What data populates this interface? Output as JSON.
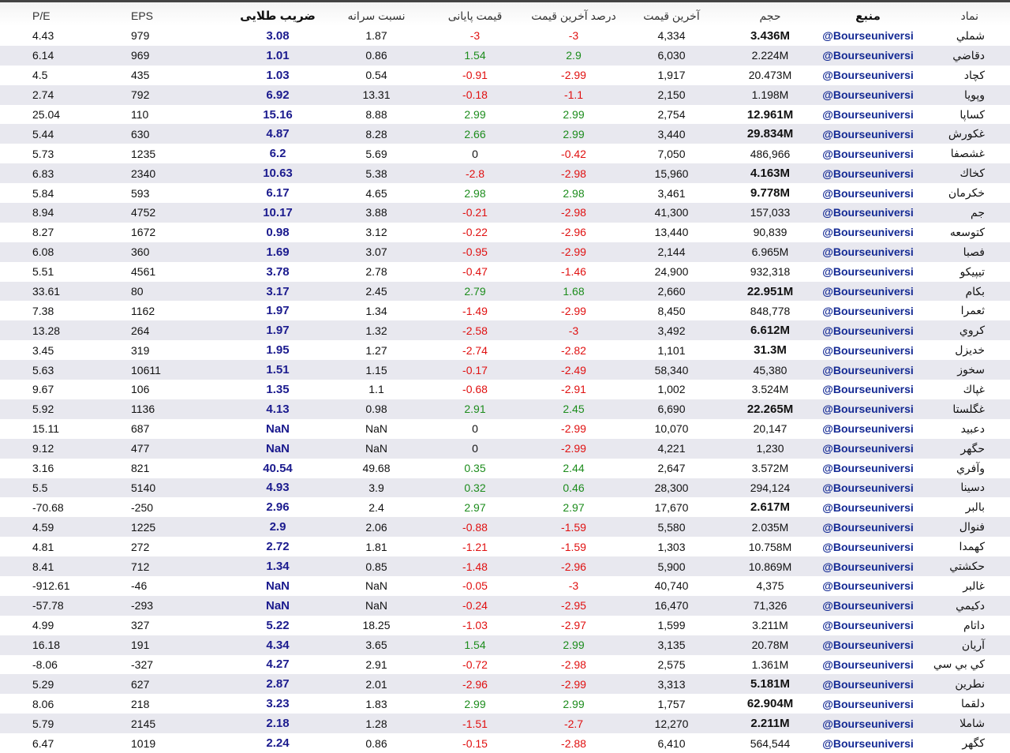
{
  "table": {
    "headers": [
      "P/E",
      "EPS",
      "ضریب طلایی",
      "نسبت سرانه",
      "قیمت پایانی",
      "درصد آخرین قیمت",
      "آخرین قیمت",
      "حجم",
      "منبع",
      "نماد"
    ],
    "volume_bold": [
      true,
      false,
      false,
      false,
      true,
      true,
      false,
      true,
      true,
      false,
      false,
      false,
      false,
      true,
      false,
      true,
      true,
      false,
      false,
      true,
      false,
      false,
      false,
      false,
      true,
      false,
      false,
      false,
      false,
      false,
      false,
      false,
      false,
      true,
      true,
      true,
      false
    ],
    "rows": [
      [
        "4.43",
        "979",
        "3.08",
        "1.87",
        "-3",
        "-3",
        "4,334",
        "3.436M",
        "@Bourseuniversi",
        "شملي"
      ],
      [
        "6.14",
        "969",
        "1.01",
        "0.86",
        "1.54",
        "2.9",
        "6,030",
        "2.224M",
        "@Bourseuniversi",
        "دقاضي"
      ],
      [
        "4.5",
        "435",
        "1.03",
        "0.54",
        "-0.91",
        "-2.99",
        "1,917",
        "20.473M",
        "@Bourseuniversi",
        "کچاد"
      ],
      [
        "2.74",
        "792",
        "6.92",
        "13.31",
        "-0.18",
        "-1.1",
        "2,150",
        "1.198M",
        "@Bourseuniversi",
        "وپويا"
      ],
      [
        "25.04",
        "110",
        "15.16",
        "8.88",
        "2.99",
        "2.99",
        "2,754",
        "12.961M",
        "@Bourseuniversi",
        "کساپا"
      ],
      [
        "5.44",
        "630",
        "4.87",
        "8.28",
        "2.66",
        "2.99",
        "3,440",
        "29.834M",
        "@Bourseuniversi",
        "غکورش"
      ],
      [
        "5.73",
        "1235",
        "6.2",
        "5.69",
        "0",
        "-0.42",
        "7,050",
        "486,966",
        "@Bourseuniversi",
        "غشصفا"
      ],
      [
        "6.83",
        "2340",
        "10.63",
        "5.38",
        "-2.8",
        "-2.98",
        "15,960",
        "4.163M",
        "@Bourseuniversi",
        "کخاك"
      ],
      [
        "5.84",
        "593",
        "6.17",
        "4.65",
        "2.98",
        "2.98",
        "3,461",
        "9.778M",
        "@Bourseuniversi",
        "خکرمان"
      ],
      [
        "8.94",
        "4752",
        "10.17",
        "3.88",
        "-0.21",
        "-2.98",
        "41,300",
        "157,033",
        "@Bourseuniversi",
        "جم"
      ],
      [
        "8.27",
        "1672",
        "0.98",
        "3.12",
        "-0.22",
        "-2.96",
        "13,440",
        "90,839",
        "@Bourseuniversi",
        "کتوسعه"
      ],
      [
        "6.08",
        "360",
        "1.69",
        "3.07",
        "-0.95",
        "-2.99",
        "2,144",
        "6.965M",
        "@Bourseuniversi",
        "فصبا"
      ],
      [
        "5.51",
        "4561",
        "3.78",
        "2.78",
        "-0.47",
        "-1.46",
        "24,900",
        "932,318",
        "@Bourseuniversi",
        "تيپيکو"
      ],
      [
        "33.61",
        "80",
        "3.17",
        "2.45",
        "2.79",
        "1.68",
        "2,660",
        "22.951M",
        "@Bourseuniversi",
        "بکام"
      ],
      [
        "7.38",
        "1162",
        "1.97",
        "1.34",
        "-1.49",
        "-2.99",
        "8,450",
        "848,778",
        "@Bourseuniversi",
        "ثعمرا"
      ],
      [
        "13.28",
        "264",
        "1.97",
        "1.32",
        "-2.58",
        "-3",
        "3,492",
        "6.612M",
        "@Bourseuniversi",
        "کروي"
      ],
      [
        "3.45",
        "319",
        "1.95",
        "1.27",
        "-2.74",
        "-2.82",
        "1,101",
        "31.3M",
        "@Bourseuniversi",
        "خديزل"
      ],
      [
        "5.63",
        "10611",
        "1.51",
        "1.15",
        "-0.17",
        "-2.49",
        "58,340",
        "45,380",
        "@Bourseuniversi",
        "سخوز"
      ],
      [
        "9.67",
        "106",
        "1.35",
        "1.1",
        "-0.68",
        "-2.91",
        "1,002",
        "3.524M",
        "@Bourseuniversi",
        "غپاك"
      ],
      [
        "5.92",
        "1136",
        "4.13",
        "0.98",
        "2.91",
        "2.45",
        "6,690",
        "22.265M",
        "@Bourseuniversi",
        "غگلستا"
      ],
      [
        "15.11",
        "687",
        "NaN",
        "NaN",
        "0",
        "-2.99",
        "10,070",
        "20,147",
        "@Bourseuniversi",
        "دعبيد"
      ],
      [
        "9.12",
        "477",
        "NaN",
        "NaN",
        "0",
        "-2.99",
        "4,221",
        "1,230",
        "@Bourseuniversi",
        "حگهر"
      ],
      [
        "3.16",
        "821",
        "40.54",
        "49.68",
        "0.35",
        "2.44",
        "2,647",
        "3.572M",
        "@Bourseuniversi",
        "وآفري"
      ],
      [
        "5.5",
        "5140",
        "4.93",
        "3.9",
        "0.32",
        "0.46",
        "28,300",
        "294,124",
        "@Bourseuniversi",
        "دسينا"
      ],
      [
        "-70.68",
        "-250",
        "2.96",
        "2.4",
        "2.97",
        "2.97",
        "17,670",
        "2.617M",
        "@Bourseuniversi",
        "بالبر"
      ],
      [
        "4.59",
        "1225",
        "2.9",
        "2.06",
        "-0.88",
        "-1.59",
        "5,580",
        "2.035M",
        "@Bourseuniversi",
        "فنوال"
      ],
      [
        "4.81",
        "272",
        "2.72",
        "1.81",
        "-1.21",
        "-1.59",
        "1,303",
        "10.758M",
        "@Bourseuniversi",
        "کهمدا"
      ],
      [
        "8.41",
        "712",
        "1.34",
        "0.85",
        "-1.48",
        "-2.96",
        "5,900",
        "10.869M",
        "@Bourseuniversi",
        "حکشتي"
      ],
      [
        "-912.61",
        "-46",
        "NaN",
        "NaN",
        "-0.05",
        "-3",
        "40,740",
        "4,375",
        "@Bourseuniversi",
        "غالبر"
      ],
      [
        "-57.78",
        "-293",
        "NaN",
        "NaN",
        "-0.24",
        "-2.95",
        "16,470",
        "71,326",
        "@Bourseuniversi",
        "دکيمي"
      ],
      [
        "4.99",
        "327",
        "5.22",
        "18.25",
        "-1.03",
        "-2.97",
        "1,599",
        "3.211M",
        "@Bourseuniversi",
        "داتام"
      ],
      [
        "16.18",
        "191",
        "4.34",
        "3.65",
        "1.54",
        "2.99",
        "3,135",
        "20.78M",
        "@Bourseuniversi",
        "آريان"
      ],
      [
        "-8.06",
        "-327",
        "4.27",
        "2.91",
        "-0.72",
        "-2.98",
        "2,575",
        "1.361M",
        "@Bourseuniversi",
        "کي بي سي"
      ],
      [
        "5.29",
        "627",
        "2.87",
        "2.01",
        "-2.96",
        "-2.99",
        "3,313",
        "5.181M",
        "@Bourseuniversi",
        "نطرين"
      ],
      [
        "8.06",
        "218",
        "3.23",
        "1.83",
        "2.99",
        "2.99",
        "1,757",
        "62.904M",
        "@Bourseuniversi",
        "دلقما"
      ],
      [
        "5.79",
        "2145",
        "2.18",
        "1.28",
        "-1.51",
        "-2.7",
        "12,270",
        "2.211M",
        "@Bourseuniversi",
        "شاملا"
      ],
      [
        "6.47",
        "1019",
        "2.24",
        "0.86",
        "-0.15",
        "-2.88",
        "6,410",
        "564,544",
        "@Bourseuniversi",
        "کگهر"
      ]
    ]
  }
}
